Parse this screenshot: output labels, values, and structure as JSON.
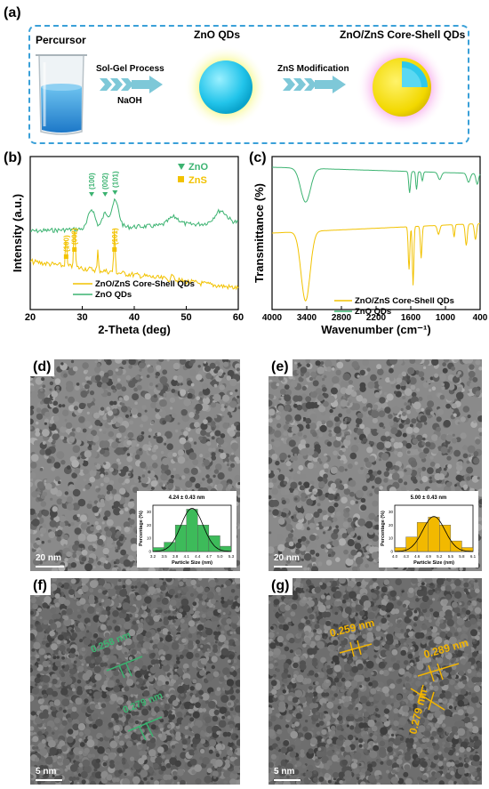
{
  "panels": {
    "a": "(a)",
    "b": "(b)",
    "c": "(c)",
    "d": "(d)",
    "e": "(e)",
    "f": "(f)",
    "g": "(g)"
  },
  "schematic": {
    "precursor_label": "Percursor",
    "zno_label": "ZnO QDs",
    "coreshell_label": "ZnO/ZnS Core-Shell QDs",
    "step1_top": "Sol-Gel Process",
    "step1_bottom": "NaOH",
    "step2_top": "ZnS Modification",
    "colors": {
      "border": "#3aa0d8",
      "arrow": "#7ec8d8",
      "core": "#2ec8ea",
      "shell": "#f5e000"
    }
  },
  "xrd": {
    "ylabel": "Intensity (a.u.)",
    "xlabel": "2-Theta (deg)",
    "xticks": [
      "20",
      "30",
      "40",
      "50",
      "60"
    ],
    "legend_zno_marker": "ZnO",
    "legend_zns_marker": "ZnS",
    "legend_series_1": "ZnO/ZnS Core-Shell QDs",
    "legend_series_2": "ZnO QDs",
    "peaks_zno": [
      {
        "label": "(100)",
        "x": 31.8
      },
      {
        "label": "(002)",
        "x": 34.4
      },
      {
        "label": "(101)",
        "x": 36.3
      }
    ],
    "peaks_zns": [
      {
        "label": "(100)",
        "x": 26.9
      },
      {
        "label": "(002)",
        "x": 28.5
      },
      {
        "label": "(101)",
        "x": 36.2
      }
    ],
    "colors": {
      "zno": "#3cb371",
      "zns": "#f2c200"
    }
  },
  "ftir": {
    "ylabel": "Transmittance (%)",
    "xlabel": "Wavenumber (cm⁻¹)",
    "xticks": [
      "4000",
      "3400",
      "2800",
      "2200",
      "1600",
      "1000",
      "400"
    ],
    "legend_series_1": "ZnO/ZnS Core-Shell QDs",
    "legend_series_2": "ZnO QDs"
  },
  "tem_d": {
    "scalebar": "20 nm",
    "hist_title": "4.24 ± 0.43 nm",
    "hist_xlabel": "Particle Size (nm)",
    "hist_ylabel": "Percentage (%)",
    "hist_xticks": [
      "3.2",
      "3.5",
      "3.8",
      "4.1",
      "4.4",
      "4.7",
      "5.0",
      "5.3"
    ],
    "hist_yticks": [
      "0",
      "10",
      "20",
      "30"
    ],
    "hist_values": [
      3,
      7,
      20,
      32,
      20,
      12,
      4
    ],
    "hist_color": "#3dbb5a"
  },
  "tem_e": {
    "scalebar": "20 nm",
    "hist_title": "5.00 ± 0.43 nm",
    "hist_xlabel": "Particle Size (nm)",
    "hist_ylabel": "Percentage (%)",
    "hist_xticks": [
      "4.0",
      "4.3",
      "4.6",
      "4.9",
      "5.2",
      "5.5",
      "5.8",
      "6.1"
    ],
    "hist_yticks": [
      "0",
      "10",
      "20",
      "30"
    ],
    "hist_values": [
      3,
      11,
      22,
      26,
      20,
      8,
      3
    ],
    "hist_color": "#f2b900"
  },
  "hrtem_f": {
    "scalebar": "5 nm",
    "d1": "0.258 nm",
    "d2": "0.279 nm",
    "color": "#3cb371"
  },
  "hrtem_g": {
    "scalebar": "5 nm",
    "d1": "0.259 nm",
    "d2": "0.289 nm",
    "d3": "0.279 nm",
    "color": "#f2b400"
  }
}
